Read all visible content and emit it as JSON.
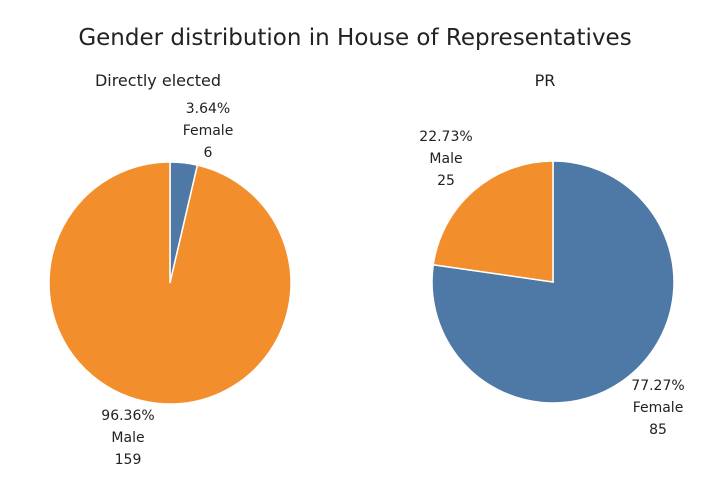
{
  "chart_data": {
    "type": "pie",
    "title": "Gender distribution in House of Representatives",
    "colors": {
      "Female": "#4e79a7",
      "Male": "#f28e2b"
    },
    "charts": [
      {
        "subtitle": "Directly elected",
        "slices": [
          {
            "label": "Female",
            "value": 6,
            "percent": "3.64%",
            "color": "#4e79a7"
          },
          {
            "label": "Male",
            "value": 159,
            "percent": "96.36%",
            "color": "#f28e2b"
          }
        ]
      },
      {
        "subtitle": "PR",
        "slices": [
          {
            "label": "Female",
            "value": 85,
            "percent": "77.27%",
            "color": "#4e79a7"
          },
          {
            "label": "Male",
            "value": 25,
            "percent": "22.73%",
            "color": "#f28e2b"
          }
        ]
      }
    ]
  }
}
